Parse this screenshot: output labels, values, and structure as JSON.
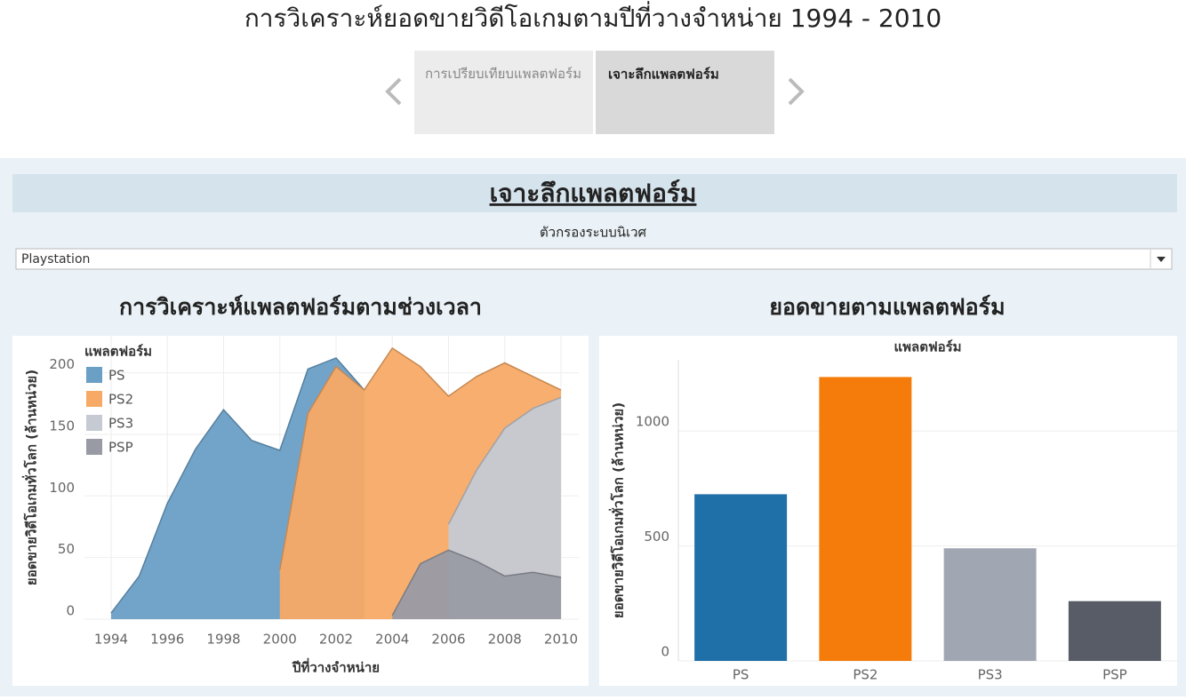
{
  "header": {
    "title": "การวิเคราะห์ยอดขายวิดีโอเกมตามปีที่วางจำหน่าย 1994 - 2010"
  },
  "story_tabs": [
    "การเปรียบเทียบแพลตฟอร์ม",
    "เจาะลึกแพลตฟอร์ม"
  ],
  "section_title": "เจาะลึกแพลตฟอร์ม",
  "filter": {
    "label": "ตัวกรองระบบนิเวศ",
    "value": "Playstation"
  },
  "chart_data": [
    {
      "type": "area",
      "title": "การวิเคราะห์แพลตฟอร์มตามช่วงเวลา",
      "x_label": "ปีที่วางจำหน่าย",
      "y_label": "ยอดขายวิดีโอเกมทั่วโลก (ล้านหน่วย)",
      "legend_title": "แพลตฟอร์ม",
      "legend": "upper left",
      "grid": true,
      "x": [
        1994,
        1995,
        1996,
        1997,
        1998,
        1999,
        2000,
        2001,
        2002,
        2003,
        2004,
        2005,
        2006,
        2007,
        2008,
        2009,
        2010
      ],
      "series": [
        {
          "name": "PS",
          "color": "#6a9fc6",
          "values": [
            5,
            35,
            94,
            138,
            170,
            145,
            137,
            203,
            212,
            186,
            null,
            null,
            null,
            null,
            null,
            null,
            null
          ]
        },
        {
          "name": "PS2",
          "color": "#f7aa66",
          "values": [
            null,
            null,
            null,
            null,
            null,
            null,
            40,
            167,
            205,
            186,
            220,
            205,
            181,
            197,
            208,
            197,
            186
          ]
        },
        {
          "name": "PS3",
          "color": "#c5cad3",
          "values": [
            null,
            null,
            null,
            null,
            null,
            null,
            null,
            null,
            null,
            null,
            null,
            null,
            77,
            121,
            155,
            171,
            180
          ]
        },
        {
          "name": "PSP",
          "color": "#999ba4",
          "values": [
            null,
            null,
            null,
            null,
            null,
            null,
            null,
            null,
            null,
            null,
            3,
            45,
            56,
            47,
            35,
            38,
            34
          ]
        }
      ],
      "xlim": [
        1994,
        2010
      ],
      "xticks": [
        1994,
        1996,
        1998,
        2000,
        2002,
        2004,
        2006,
        2008,
        2010
      ],
      "ylim": [
        0,
        230
      ],
      "yticks": [
        0,
        50,
        100,
        150,
        200
      ]
    },
    {
      "type": "bar",
      "title": "ยอดขายตามแพลตฟอร์ม",
      "x_label": "แพลตฟอร์ม",
      "y_label": "ยอดขายวิดีโอเกมทั่วโลก (ล้านหน่วย)",
      "grid": true,
      "categories": [
        "PS",
        "PS2",
        "PS3",
        "PSP"
      ],
      "series": [
        {
          "name": "ยอดขาย",
          "colors": [
            "#1f6fa8",
            "#f57c0a",
            "#a1a7b2",
            "#575c66"
          ],
          "values": [
            725,
            1235,
            490,
            260
          ]
        }
      ],
      "ylim": [
        0,
        1310
      ],
      "yticks": [
        0,
        500,
        1000
      ]
    }
  ]
}
